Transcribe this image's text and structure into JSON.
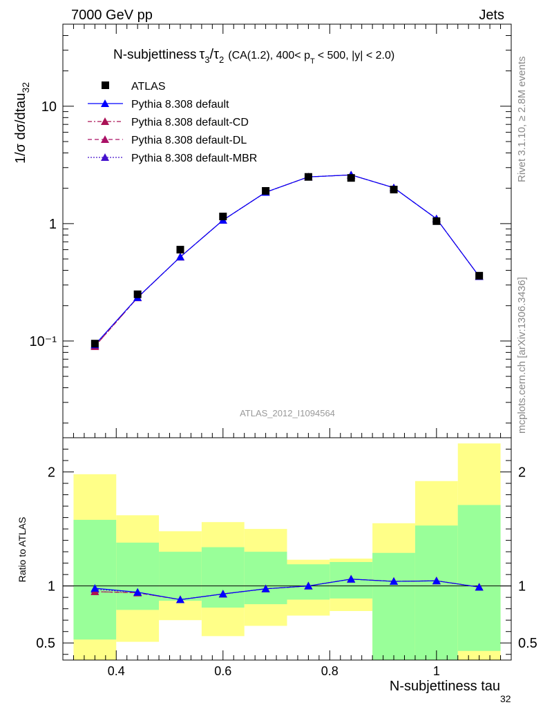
{
  "header": {
    "left": "7000 GeV pp",
    "right": "Jets"
  },
  "side": {
    "rivet": "Rivet 3.1.10, ≥ 2.8M events",
    "mcplots": "mcplots.cern.ch [arXiv:1306.3436]"
  },
  "watermark": "ATLAS_2012_I1094564",
  "title": {
    "main": "N-subjettiness",
    "cuts": "(CA(1.2), 400< p",
    "cuts_sub": "T",
    "cuts_end": "< 500, |y| < 2.0)"
  },
  "axes": {
    "ylabel": "1/σ dσ/dtau",
    "ylabel_sub": "32",
    "xlabel": "N-subjettiness tau",
    "xlabel_sub": "32",
    "ratio_ylabel": "Ratio to ATLAS"
  },
  "colors": {
    "data": "#000000",
    "default": "#0000ff",
    "cd": "#aa1155",
    "dl": "#aa1166",
    "mbr": "#4411cc",
    "band_inner": "#99ff99",
    "band_outer": "#ffff88"
  },
  "chart_data": {
    "type": "scatter",
    "x": [
      0.36,
      0.44,
      0.52,
      0.6,
      0.68,
      0.76,
      0.84,
      0.92,
      1.0,
      1.08
    ],
    "bin_edges": [
      0.32,
      0.4,
      0.48,
      0.56,
      0.64,
      0.72,
      0.8,
      0.88,
      0.96,
      1.04,
      1.12
    ],
    "xlim": [
      0.3,
      1.14
    ],
    "ylim_main": [
      0.015,
      50
    ],
    "yscale_main": "log",
    "ylim_ratio": [
      0.35,
      2.3
    ],
    "x_ticks": [
      "0.4",
      "0.6",
      "0.8",
      "1"
    ],
    "y_ticks_main": [
      "10⁻¹",
      "1",
      "10"
    ],
    "y_ticks_ratio": [
      "0.5",
      "1",
      "2"
    ],
    "legend": "top-left",
    "series": [
      {
        "name": "ATLAS",
        "marker": "square",
        "values": [
          0.095,
          0.25,
          0.6,
          1.15,
          1.9,
          2.5,
          2.45,
          1.95,
          1.05,
          0.36
        ]
      },
      {
        "name": "Pythia 8.308 default",
        "marker": "triangle",
        "line": "solid",
        "values": [
          0.093,
          0.235,
          0.52,
          1.07,
          1.85,
          2.5,
          2.6,
          2.02,
          1.1,
          0.355
        ]
      },
      {
        "name": "Pythia 8.308 default-CD",
        "marker": "triangle",
        "line": "dashdot",
        "values": [
          0.09,
          0.234,
          0.52,
          1.07,
          1.85,
          2.5,
          2.6,
          2.02,
          1.1,
          0.355
        ]
      },
      {
        "name": "Pythia 8.308 default-DL",
        "marker": "triangle",
        "line": "dashed",
        "values": [
          0.09,
          0.234,
          0.52,
          1.07,
          1.85,
          2.5,
          2.6,
          2.02,
          1.1,
          0.355
        ]
      },
      {
        "name": "Pythia 8.308 default-MBR",
        "marker": "triangle",
        "line": "dotted",
        "values": [
          0.092,
          0.235,
          0.52,
          1.07,
          1.85,
          2.5,
          2.6,
          2.02,
          1.1,
          0.355
        ]
      }
    ],
    "ratio_series": [
      {
        "name": "Pythia 8.308 default",
        "values": [
          0.98,
          0.945,
          0.88,
          0.93,
          0.975,
          1.0,
          1.06,
          1.04,
          1.045,
          0.99
        ]
      },
      {
        "name": "Pythia 8.308 default-CD",
        "values": [
          0.95,
          0.94,
          0.88,
          0.93,
          0.975,
          1.0,
          1.06,
          1.04,
          1.045,
          0.99
        ]
      },
      {
        "name": "Pythia 8.308 default-DL",
        "values": [
          0.95,
          0.94,
          0.88,
          0.93,
          0.975,
          1.0,
          1.06,
          1.04,
          1.045,
          0.99
        ]
      },
      {
        "name": "Pythia 8.308 default-MBR",
        "values": [
          0.97,
          0.945,
          0.88,
          0.93,
          0.975,
          1.0,
          1.06,
          1.04,
          1.045,
          0.99
        ]
      }
    ],
    "bands": {
      "inner_low": [
        0.53,
        0.79,
        0.87,
        0.81,
        0.84,
        0.88,
        0.89,
        0.35,
        0.35,
        0.43
      ],
      "inner_high": [
        1.58,
        1.38,
        1.3,
        1.34,
        1.3,
        1.19,
        1.21,
        1.29,
        1.53,
        1.71
      ],
      "outer_low": [
        0.35,
        0.51,
        0.7,
        0.56,
        0.65,
        0.74,
        0.78,
        0.35,
        0.35,
        0.35
      ],
      "outer_high": [
        1.98,
        1.62,
        1.48,
        1.56,
        1.5,
        1.23,
        1.24,
        1.55,
        1.92,
        2.25
      ]
    }
  }
}
